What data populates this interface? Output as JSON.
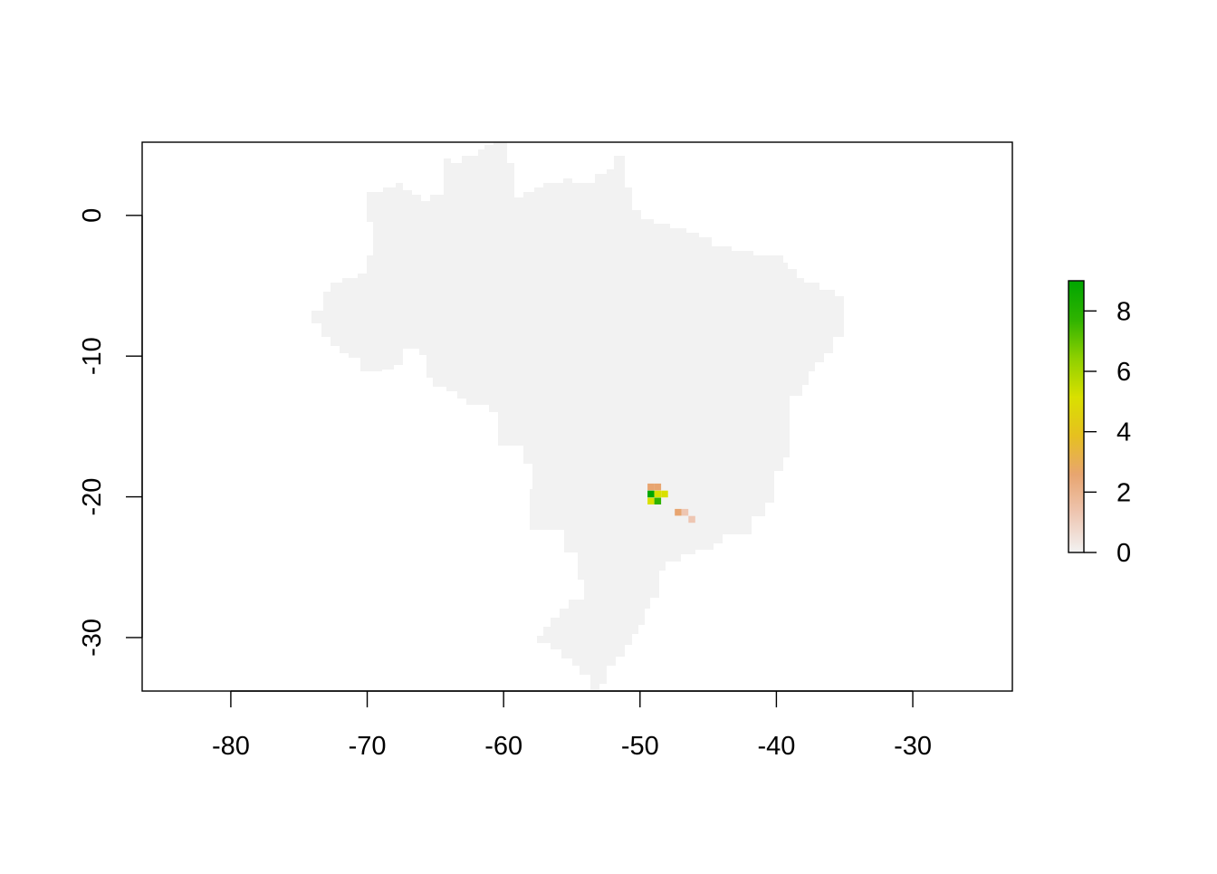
{
  "x_ticks": [
    {
      "value": -80,
      "label": "-80"
    },
    {
      "value": -70,
      "label": "-70"
    },
    {
      "value": -60,
      "label": "-60"
    },
    {
      "value": -50,
      "label": "-50"
    },
    {
      "value": -40,
      "label": "-40"
    },
    {
      "value": -30,
      "label": "-30"
    }
  ],
  "y_ticks": [
    {
      "value": 0,
      "label": "0"
    },
    {
      "value": -10,
      "label": "-10"
    },
    {
      "value": -20,
      "label": "-20"
    },
    {
      "value": -30,
      "label": "-30"
    }
  ],
  "legend_ticks": [
    {
      "value": 0,
      "label": "0"
    },
    {
      "value": 2,
      "label": "2"
    },
    {
      "value": 4,
      "label": "4"
    },
    {
      "value": 6,
      "label": "6"
    },
    {
      "value": 8,
      "label": "8"
    }
  ],
  "colors": {
    "land": "#f2f2f2",
    "ramp": [
      "#f2f2f2",
      "#eec6b2",
      "#e8a570",
      "#e6c020",
      "#d9e000",
      "#8fd000",
      "#2fb300",
      "#00a600"
    ]
  },
  "chart_data": {
    "type": "heatmap",
    "title": "",
    "xlabel": "",
    "ylabel": "",
    "xlim": [
      -86.5,
      -22.7
    ],
    "ylim": [
      -33.8,
      5.2
    ],
    "legend": {
      "position": "right",
      "range": [
        0,
        9
      ]
    },
    "grid": false,
    "land_cells": [
      {
        "x": -49,
        "y": 3
      },
      {
        "x": -40,
        "y": -5
      },
      {
        "x": -55,
        "y": -10
      },
      {
        "x": -60,
        "y": -3
      },
      {
        "x": -52,
        "y": -18
      },
      {
        "x": -53,
        "y": -28
      }
    ],
    "value_cells": [
      {
        "x": -49.2,
        "y": -19.3,
        "value": 3
      },
      {
        "x": -48.7,
        "y": -19.3,
        "value": 3
      },
      {
        "x": -49.2,
        "y": -19.8,
        "value": 9
      },
      {
        "x": -48.7,
        "y": -19.8,
        "value": 5
      },
      {
        "x": -48.2,
        "y": -19.8,
        "value": 5
      },
      {
        "x": -49.2,
        "y": -20.3,
        "value": 5
      },
      {
        "x": -48.7,
        "y": -20.3,
        "value": 8
      },
      {
        "x": -47.2,
        "y": -21.1,
        "value": 2
      },
      {
        "x": -46.7,
        "y": -21.1,
        "value": 1
      },
      {
        "x": -46.2,
        "y": -21.6,
        "value": 1
      }
    ]
  }
}
